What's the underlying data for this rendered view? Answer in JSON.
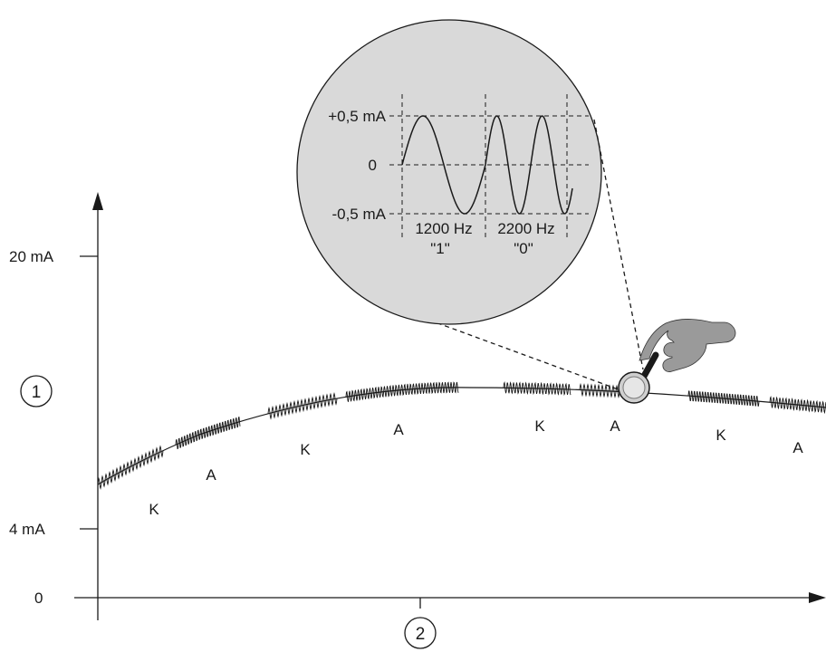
{
  "axis": {
    "y_ticks": [
      {
        "label": "20 mA",
        "value": 20
      },
      {
        "label": "4 mA",
        "value": 4
      },
      {
        "label": "0",
        "value": 0
      }
    ],
    "y_callout": "1",
    "x_callout": "2"
  },
  "segment_labels": [
    "K",
    "A",
    "K",
    "A",
    "K",
    "A",
    "K",
    "A"
  ],
  "inset": {
    "y_labels": [
      "+0,5 mA",
      "0",
      "-0,5 mA"
    ],
    "freq_1": "1200 Hz",
    "bit_1": "\"1\"",
    "freq_0": "2200 Hz",
    "bit_0": "\"0\""
  },
  "colors": {
    "line": "#1a1a1a",
    "inset_fill": "#d9d9d9",
    "hand_fill": "#9a9a9a",
    "probe_fill": "#cfcfcf"
  }
}
